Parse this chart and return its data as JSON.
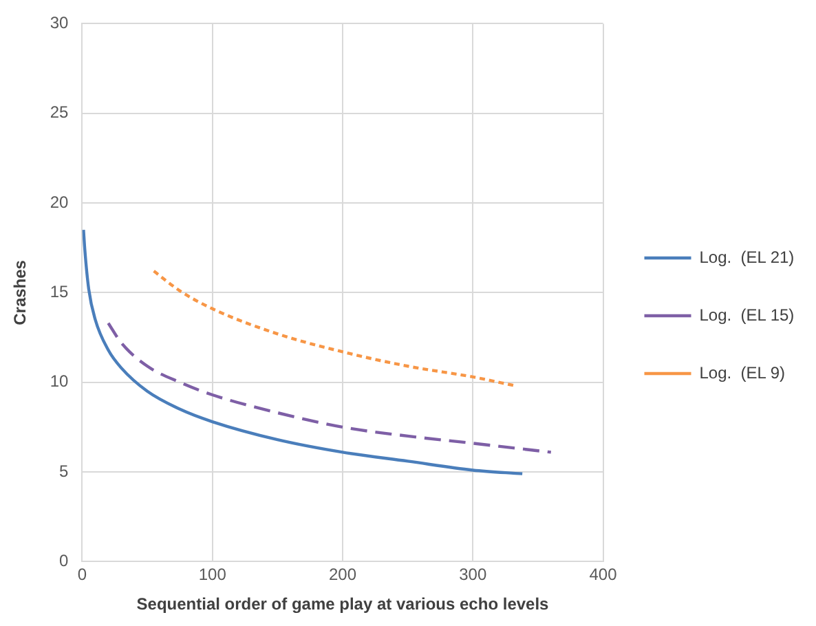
{
  "chart_data": {
    "type": "line",
    "xlabel": "Sequential order of game play at various echo levels",
    "ylabel": "Crashes",
    "xlim": [
      0,
      400
    ],
    "xticks": [
      0,
      100,
      200,
      300,
      400
    ],
    "ylim": [
      0,
      30
    ],
    "yticks": [
      0,
      5,
      10,
      15,
      20,
      25,
      30
    ],
    "grid": true,
    "legend": "right",
    "marker": "none",
    "series": [
      {
        "name": "Log.  (EL 21)",
        "color": "#4a7ebb",
        "line_style": "solid",
        "x": [
          1,
          2,
          5,
          10,
          20,
          30,
          50,
          75,
          100,
          150,
          200,
          250,
          300,
          338
        ],
        "values": [
          18.5,
          17.4,
          15.2,
          13.5,
          11.8,
          10.8,
          9.5,
          8.5,
          7.8,
          6.8,
          6.1,
          5.6,
          5.1,
          4.9
        ]
      },
      {
        "name": "Log.  (EL 15)",
        "color": "#7e5fa6",
        "line_style": "dashed",
        "x": [
          20,
          30,
          50,
          75,
          100,
          150,
          200,
          250,
          300,
          360
        ],
        "values": [
          13.3,
          12.2,
          10.9,
          10.0,
          9.3,
          8.3,
          7.5,
          7.0,
          6.6,
          6.1
        ]
      },
      {
        "name": "Log.  (EL 9)",
        "color": "#f79646",
        "line_style": "dotted",
        "x": [
          55,
          75,
          100,
          150,
          200,
          250,
          300,
          333
        ],
        "values": [
          16.2,
          15.1,
          14.1,
          12.7,
          11.7,
          10.9,
          10.3,
          9.8
        ]
      }
    ]
  }
}
